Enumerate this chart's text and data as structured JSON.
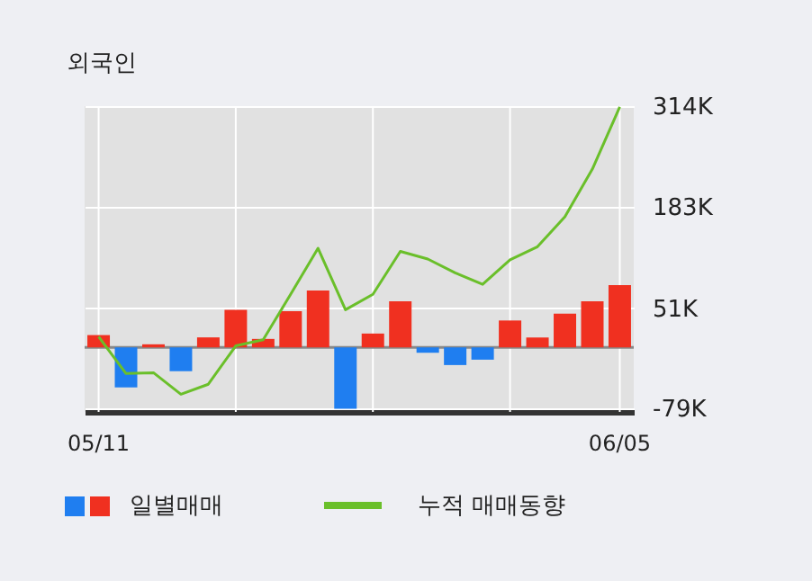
{
  "chart_data": {
    "type": "bar",
    "title": "외국인",
    "categories": [
      "05/11",
      null,
      null,
      null,
      null,
      null,
      null,
      null,
      null,
      null,
      null,
      null,
      null,
      null,
      null,
      null,
      null,
      null,
      null,
      "06/05"
    ],
    "series": [
      {
        "name": "일별매매",
        "values": [
          16,
          -52,
          4,
          -31,
          13,
          49,
          11,
          47,
          74,
          -80,
          18,
          60,
          -7,
          -23,
          -16,
          35,
          13,
          44,
          60,
          81
        ],
        "colors": [
          "#f03020",
          "#1f7ef0",
          "#f03020",
          "#1f7ef0",
          "#f03020",
          "#f03020",
          "#f03020",
          "#f03020",
          "#f03020",
          "#1f7ef0",
          "#f03020",
          "#f03020",
          "#1f7ef0",
          "#1f7ef0",
          "#1f7ef0",
          "#f03020",
          "#f03020",
          "#f03020",
          "#f03020",
          "#f03020"
        ]
      },
      {
        "name": "누적 매매동향",
        "type": "line",
        "color": "#6abf2a",
        "values": [
          14,
          -34,
          -33,
          -61,
          -48,
          2,
          10,
          69,
          129,
          49,
          69,
          125,
          115,
          97,
          82,
          114,
          131,
          170,
          232,
          313
        ]
      }
    ],
    "ylim": [
      -84,
      314
    ],
    "yticks": [
      {
        "value": 314,
        "label": "314K"
      },
      {
        "value": 183,
        "label": "183K"
      },
      {
        "value": 51,
        "label": "51K"
      },
      {
        "value": -79,
        "label": "-79K"
      }
    ],
    "ref_lines": [
      {
        "axis": "y",
        "value": 0,
        "color": "#888888"
      }
    ],
    "grid": true,
    "legend": "bottom"
  }
}
